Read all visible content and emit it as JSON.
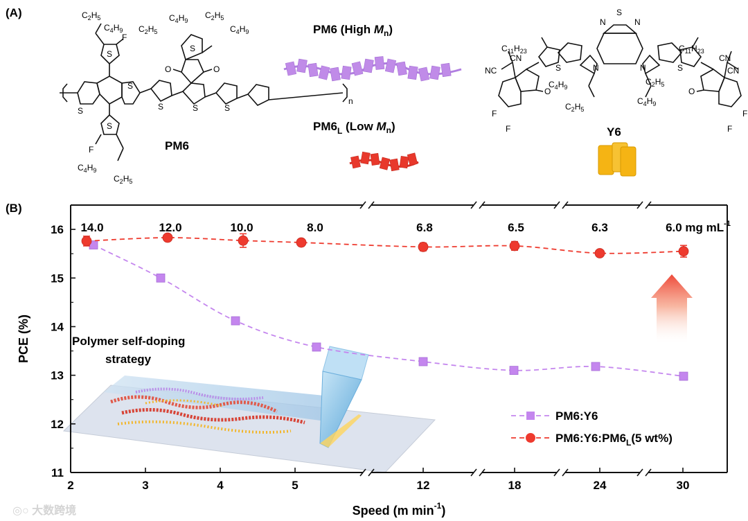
{
  "panel_a": {
    "label": "(A)",
    "pm6": {
      "name": "PM6",
      "c2h5": "C2H5",
      "c4h9": "C4H9",
      "f": "F",
      "s": "S",
      "o": "O",
      "n": "n"
    },
    "pm6_high": {
      "prefix": "PM6 (High ",
      "m": "M",
      "sub": "n",
      "suffix": ")"
    },
    "pm6_low": {
      "prefix": "PM6",
      "sub_l": "L",
      "mid": " (Low ",
      "m": "M",
      "sub": "n",
      "suffix": ")"
    },
    "y6": {
      "name": "Y6",
      "c11h23": "C11H23",
      "c2h5": "C2H5",
      "c4h9": "C4H9",
      "cn": "CN",
      "nc": "NC",
      "f": "F",
      "o": "O",
      "s": "S",
      "n": "N"
    },
    "colors": {
      "high_mw": "#c08be8",
      "low_mw": "#e8382b",
      "y6": "#f5b414"
    }
  },
  "panel_b": {
    "label": "(B)",
    "strategy_line1": "Polymer self-doping",
    "strategy_line2": "strategy"
  },
  "chart_data": {
    "type": "line",
    "ylabel": "PCE (%)",
    "xlabel_prefix": "Speed (m min",
    "xlabel_sup": "-1",
    "xlabel_suffix": ")",
    "ylim": [
      11,
      16.5
    ],
    "yticks": [
      "11",
      "12",
      "13",
      "14",
      "15",
      "16"
    ],
    "categories": [
      "2",
      "3",
      "4",
      "5",
      "12",
      "18",
      "24",
      "30"
    ],
    "concentrations": [
      "14.0",
      "12.0",
      "10.0",
      "8.0",
      "6.8",
      "6.5",
      "6.3",
      "6.0 mg mL"
    ],
    "conc_unit_sup": "-1",
    "axis_breaks": true,
    "series": [
      {
        "name": "PM6:Y6",
        "marker": "square",
        "color": "#c486ee",
        "x_pos": [
          2.3,
          3.2,
          4.2,
          5.3,
          6.6,
          7.6,
          8.5,
          9.6
        ],
        "values": [
          15.68,
          15.0,
          14.12,
          13.58,
          13.28,
          13.1,
          13.18,
          12.98
        ],
        "errors": [
          0.04,
          0.05,
          0.05,
          0.05,
          0.06,
          0.06,
          0.07,
          0.06
        ]
      },
      {
        "name": "PM6:Y6:PM6",
        "name_sub": "L",
        "name_suffix": "(5 wt%)",
        "marker": "circle",
        "color": "#ee3a2e",
        "x_pos": [
          2.2,
          3.3,
          4.3,
          5.4,
          6.6,
          7.6,
          8.5,
          9.6
        ],
        "values": [
          15.76,
          15.83,
          15.77,
          15.73,
          15.64,
          15.66,
          15.51,
          15.55
        ],
        "errors": [
          0.1,
          0.06,
          0.14,
          0.07,
          0.08,
          0.09,
          0.05,
          0.12
        ]
      }
    ],
    "legend_position": "bottom-right"
  }
}
